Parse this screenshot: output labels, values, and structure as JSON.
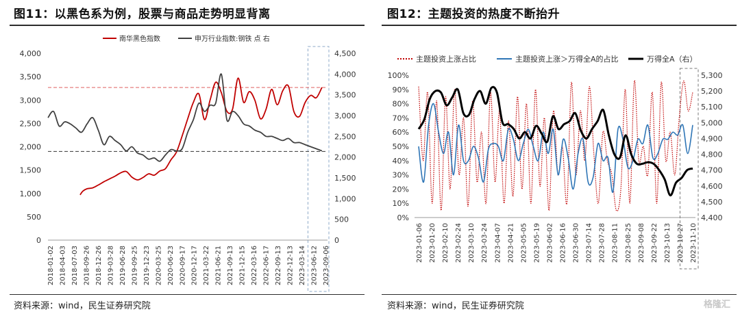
{
  "left": {
    "title": "图11：以黑色系为例，股票与商品走势明显背离",
    "source": "资料来源：wind，民生证券研究院"
  },
  "right": {
    "title": "图12：主题投资的热度不断抬升",
    "source": "资料来源：wind，民生证券研究院"
  },
  "watermark": "格隆汇",
  "colors": {
    "red": "#c00000",
    "gray": "#404040",
    "blue": "#2e75b6",
    "black": "#000000",
    "dash_red": "#e06060",
    "dash_black": "#333333",
    "box": "#8ea9c8"
  },
  "chart_data": [
    {
      "type": "line",
      "legend_position": "top",
      "x_tick_labels": [
        "2018-01-02",
        "2018-04-03",
        "2018-07-03",
        "2018-09-26",
        "2018-12-26",
        "2019-03-28",
        "2019-06-28",
        "2019-09-25",
        "2019-12-23",
        "2020-03-25",
        "2020-06-23",
        "2020-09-17",
        "2020-12-17",
        "2021-03-22",
        "2021-06-21",
        "2021-09-13",
        "2021-12-15",
        "2022-03-16",
        "2022-06-17",
        "2022-09-13",
        "2022-12-13",
        "2023-03-14",
        "2023-06-12",
        "2023-09-06"
      ],
      "y_left": {
        "range": [
          0,
          4000
        ],
        "ticks": [
          "0",
          "500",
          "1,000",
          "1,500",
          "2,000",
          "2,500",
          "3,000",
          "3,500",
          "4,000"
        ]
      },
      "y_right": {
        "range": [
          0,
          4500
        ],
        "ticks": [
          "0",
          "500",
          "1,000",
          "1,500",
          "2,000",
          "2,500",
          "3,000",
          "3,500",
          "4,000",
          "4,500"
        ]
      },
      "series": [
        {
          "name": "南华黑色指数",
          "axis": "left",
          "color": "#c00000",
          "x": [
            0.115,
            0.125,
            0.14,
            0.16,
            0.18,
            0.2,
            0.22,
            0.24,
            0.26,
            0.28,
            0.3,
            0.32,
            0.34,
            0.36,
            0.38,
            0.4,
            0.42,
            0.44,
            0.46,
            0.48,
            0.5,
            0.52,
            0.54,
            0.56,
            0.58,
            0.6,
            0.62,
            0.64,
            0.66,
            0.68,
            0.7,
            0.72,
            0.74,
            0.76,
            0.78,
            0.8,
            0.82,
            0.84,
            0.86,
            0.88,
            0.9,
            0.92,
            0.94,
            0.96,
            0.98
          ],
          "y": [
            970,
            1050,
            1100,
            1120,
            1180,
            1250,
            1310,
            1370,
            1440,
            1470,
            1350,
            1290,
            1340,
            1420,
            1390,
            1480,
            1530,
            1720,
            1890,
            2230,
            2600,
            2950,
            3130,
            2580,
            3000,
            3380,
            3160,
            2760,
            2800,
            3470,
            2950,
            3180,
            3000,
            2600,
            2800,
            3230,
            2900,
            3200,
            3300,
            2750,
            2650,
            2950,
            3100,
            3050,
            3270
          ]
        },
        {
          "name": "申万行业指数:钢铁 点 右",
          "axis": "right",
          "color": "#404040",
          "x": [
            0.0,
            0.02,
            0.04,
            0.06,
            0.08,
            0.1,
            0.12,
            0.14,
            0.16,
            0.18,
            0.2,
            0.22,
            0.24,
            0.26,
            0.28,
            0.3,
            0.32,
            0.34,
            0.36,
            0.38,
            0.4,
            0.42,
            0.44,
            0.46,
            0.48,
            0.5,
            0.52,
            0.54,
            0.56,
            0.58,
            0.6,
            0.62,
            0.64,
            0.66,
            0.68,
            0.7,
            0.72,
            0.74,
            0.76,
            0.78,
            0.8,
            0.82,
            0.84,
            0.86,
            0.88,
            0.9,
            0.92,
            0.94,
            0.96,
            0.98
          ],
          "y": [
            2950,
            3100,
            2750,
            2850,
            2800,
            2700,
            2600,
            2800,
            2950,
            2650,
            2300,
            2500,
            2400,
            2300,
            2150,
            2250,
            2100,
            2050,
            1950,
            1980,
            1900,
            2050,
            2180,
            2150,
            2200,
            2600,
            2900,
            3300,
            3100,
            3250,
            3300,
            4000,
            2900,
            3100,
            3000,
            2800,
            2750,
            2650,
            2600,
            2500,
            2500,
            2450,
            2400,
            2450,
            2350,
            2350,
            2300,
            2250,
            2200,
            2150
          ]
        }
      ],
      "reference_lines": [
        {
          "axis": "left",
          "value": 3270,
          "color": "#e06060"
        },
        {
          "axis": "left",
          "value": 1900,
          "color": "#333333"
        }
      ],
      "highlight_range_x": [
        0.93,
        1.0
      ]
    },
    {
      "type": "line",
      "legend_position": "top",
      "x_tick_labels": [
        "2023-01-06",
        "2023-01-20",
        "2023-02-10",
        "2023-02-24",
        "2023-03-10",
        "2023-03-24",
        "2023-04-07",
        "2023-04-21",
        "2023-05-05",
        "2023-05-19",
        "2023-06-02",
        "2023-06-16",
        "2023-06-30",
        "2023-07-14",
        "2023-07-28",
        "2023-08-11",
        "2023-08-25",
        "2023-09-08",
        "2023-09-22",
        "2023-10-13",
        "2023-10-27",
        "2023-11-10"
      ],
      "y_left": {
        "range": [
          0,
          100
        ],
        "ticks": [
          "0%",
          "10%",
          "20%",
          "30%",
          "40%",
          "50%",
          "60%",
          "70%",
          "80%",
          "90%",
          "100%"
        ]
      },
      "y_right": {
        "range": [
          4400,
          5300
        ],
        "ticks": [
          "4,400",
          "4,500",
          "4,600",
          "4,700",
          "4,800",
          "4,900",
          "5,000",
          "5,100",
          "5,200",
          "5,300"
        ]
      },
      "series": [
        {
          "name": "主题投资上涨占比",
          "axis": "left",
          "color": "#c00000",
          "style": "dotted",
          "y": [
            92,
            40,
            88,
            10,
            82,
            5,
            85,
            20,
            90,
            30,
            70,
            8,
            82,
            25,
            60,
            10,
            88,
            25,
            75,
            10,
            68,
            15,
            85,
            20,
            80,
            10,
            90,
            22,
            70,
            5,
            75,
            30,
            50,
            10,
            95,
            30,
            75,
            40,
            92,
            45,
            10,
            60,
            40,
            30,
            5,
            20,
            90,
            10,
            96,
            40,
            50,
            30,
            88,
            10,
            95,
            40,
            60,
            30,
            70,
            96,
            75,
            88
          ]
        },
        {
          "name": "主题投资上涨＞万得全A的占比",
          "axis": "left",
          "color": "#2e75b6",
          "y": [
            50,
            25,
            65,
            80,
            60,
            45,
            60,
            30,
            65,
            40,
            40,
            50,
            42,
            25,
            48,
            52,
            50,
            40,
            62,
            55,
            40,
            52,
            62,
            50,
            40,
            60,
            45,
            62,
            30,
            55,
            42,
            20,
            45,
            55,
            25,
            28,
            52,
            40,
            42,
            18,
            62,
            55,
            35,
            40,
            55,
            52,
            65,
            42,
            45,
            55,
            55,
            60,
            58,
            65,
            45,
            65
          ]
        },
        {
          "name": "万得全A（右）",
          "axis": "right",
          "color": "#000000",
          "width": 3,
          "y": [
            4960,
            5020,
            5150,
            5200,
            5190,
            5110,
            5160,
            5210,
            5060,
            5050,
            5150,
            5200,
            5120,
            5220,
            5190,
            5000,
            4990,
            4960,
            4900,
            4940,
            4900,
            4980,
            4930,
            4880,
            5040,
            4960,
            4990,
            5010,
            5060,
            4950,
            4900,
            4960,
            5010,
            5080,
            4920,
            4800,
            4780,
            4920,
            4800,
            4740,
            4740,
            4750,
            4740,
            4700,
            4640,
            4540,
            4620,
            4650,
            4700,
            4710
          ]
        }
      ],
      "highlight_range_x": [
        0.945,
        1.0
      ]
    }
  ]
}
